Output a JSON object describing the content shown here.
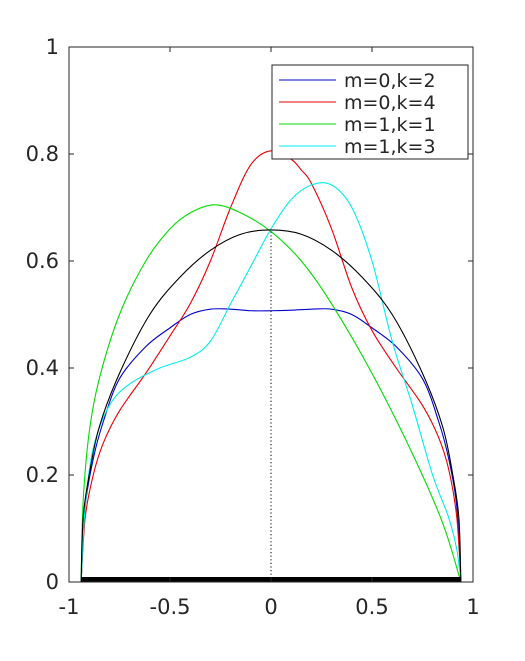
{
  "chart_data": {
    "type": "line",
    "title": "",
    "xlabel": "",
    "ylabel": "",
    "xlim": [
      -1,
      1
    ],
    "ylim": [
      0,
      1
    ],
    "grid": false,
    "legend_location": "top-right",
    "x_ticks": [
      {
        "value": -1,
        "label": "-1"
      },
      {
        "value": -0.5,
        "label": "-0.5"
      },
      {
        "value": 0,
        "label": "0"
      },
      {
        "value": 0.5,
        "label": "0.5"
      },
      {
        "value": 1,
        "label": "1"
      }
    ],
    "y_ticks": [
      {
        "value": 0,
        "label": "0"
      },
      {
        "value": 0.2,
        "label": "0.2"
      },
      {
        "value": 0.4,
        "label": "0.4"
      },
      {
        "value": 0.6,
        "label": "0.6"
      },
      {
        "value": 0.8,
        "label": "0.8"
      },
      {
        "value": 1,
        "label": "1"
      }
    ],
    "series": [
      {
        "name": "m=0,k=2",
        "color": "#0000cc",
        "x": [
          -0.94,
          -0.92,
          -0.88,
          -0.83,
          -0.75,
          -0.62,
          -0.5,
          -0.4,
          -0.3,
          -0.2,
          -0.1,
          0,
          0.1,
          0.2,
          0.3,
          0.4,
          0.5,
          0.62,
          0.75,
          0.83,
          0.88,
          0.92,
          0.94
        ],
        "y": [
          0.0,
          0.14,
          0.23,
          0.3,
          0.38,
          0.44,
          0.475,
          0.5,
          0.51,
          0.51,
          0.507,
          0.507,
          0.508,
          0.51,
          0.51,
          0.5,
          0.475,
          0.44,
          0.38,
          0.3,
          0.23,
          0.14,
          0.0
        ]
      },
      {
        "name": "m=0,k=4",
        "color": "#e60000",
        "x": [
          -0.94,
          -0.92,
          -0.88,
          -0.83,
          -0.75,
          -0.62,
          -0.5,
          -0.4,
          -0.3,
          -0.2,
          -0.1,
          0,
          0.1,
          0.15,
          0.2,
          0.3,
          0.4,
          0.5,
          0.62,
          0.75,
          0.83,
          0.88,
          0.92,
          0.94
        ],
        "y": [
          0.0,
          0.12,
          0.2,
          0.26,
          0.32,
          0.39,
          0.46,
          0.52,
          0.6,
          0.7,
          0.78,
          0.806,
          0.79,
          0.77,
          0.745,
          0.66,
          0.55,
          0.47,
          0.4,
          0.33,
          0.27,
          0.21,
          0.12,
          0.0
        ]
      },
      {
        "name": "m=1,k=1",
        "color": "#00dd00",
        "x": [
          -0.94,
          -0.93,
          -0.9,
          -0.85,
          -0.75,
          -0.62,
          -0.5,
          -0.4,
          -0.28,
          -0.15,
          0,
          0.15,
          0.3,
          0.5,
          0.7,
          0.85,
          0.94
        ],
        "y": [
          0.0,
          0.15,
          0.28,
          0.38,
          0.5,
          0.6,
          0.66,
          0.69,
          0.705,
          0.69,
          0.655,
          0.6,
          0.52,
          0.39,
          0.24,
          0.11,
          0.0
        ]
      },
      {
        "name": "m=1,k=3",
        "color": "#00eeee",
        "x": [
          -0.94,
          -0.92,
          -0.88,
          -0.8,
          -0.7,
          -0.55,
          -0.4,
          -0.3,
          -0.2,
          -0.1,
          0,
          0.1,
          0.2,
          0.3,
          0.4,
          0.5,
          0.6,
          0.7,
          0.8,
          0.88,
          0.92,
          0.94
        ],
        "y": [
          0.0,
          0.14,
          0.25,
          0.33,
          0.37,
          0.4,
          0.42,
          0.45,
          0.52,
          0.59,
          0.66,
          0.715,
          0.742,
          0.742,
          0.7,
          0.6,
          0.45,
          0.33,
          0.2,
          0.12,
          0.06,
          0.0
        ]
      },
      {
        "color": "#000000",
        "x": [
          -0.94,
          -0.93,
          -0.9,
          -0.85,
          -0.75,
          -0.6,
          -0.45,
          -0.3,
          -0.15,
          0,
          0.15,
          0.3,
          0.45,
          0.6,
          0.75,
          0.85,
          0.9,
          0.93,
          0.94
        ],
        "y": [
          0.0,
          0.12,
          0.2,
          0.29,
          0.39,
          0.5,
          0.57,
          0.62,
          0.65,
          0.658,
          0.65,
          0.62,
          0.57,
          0.5,
          0.39,
          0.29,
          0.2,
          0.12,
          0.0
        ]
      }
    ],
    "reference_line": {
      "x": 0,
      "y_range": [
        0,
        0.658
      ],
      "style": "dotted",
      "color": "#000000"
    },
    "baseline_segment": {
      "x_range": [
        -0.94,
        0.94
      ],
      "y": 0,
      "color": "#000000"
    }
  }
}
